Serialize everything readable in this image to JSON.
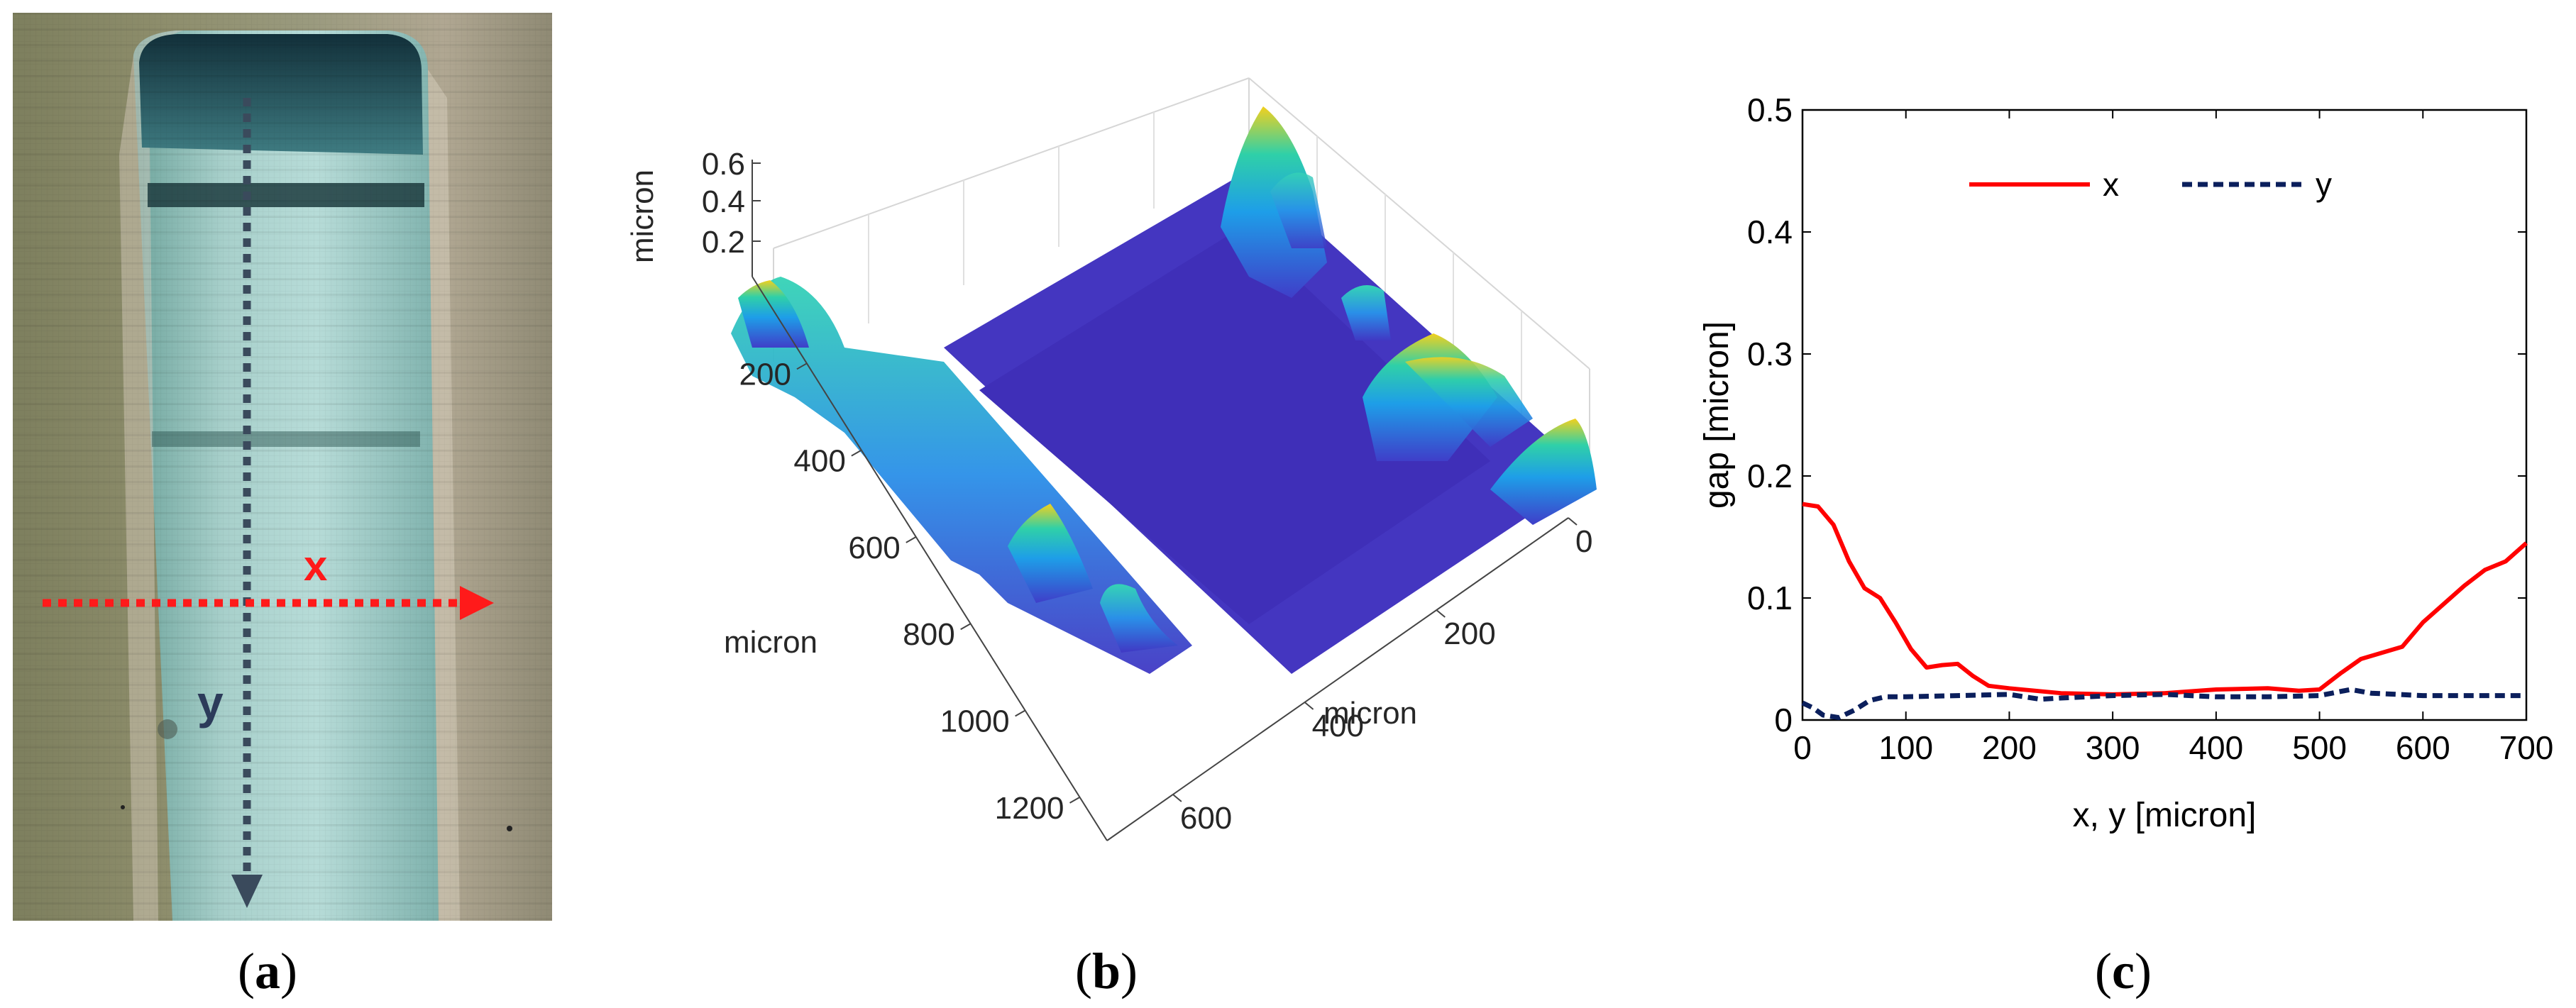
{
  "panels": {
    "a": {
      "caption_open": "(",
      "caption_letter": "a",
      "caption_close": ")",
      "x_label": "x",
      "y_label": "y"
    },
    "b": {
      "caption_open": "(",
      "caption_letter": "b",
      "caption_close": ")"
    },
    "c": {
      "caption_open": "(",
      "caption_letter": "c",
      "caption_close": ")"
    }
  },
  "chart_data": [
    {
      "type": "surface",
      "panel": "b",
      "zlabel": "micron",
      "xlabel": "micron",
      "ylabel": "micron",
      "z_ticks": [
        "0.2",
        "0.4",
        "0.6"
      ],
      "x_ticks": [
        "0",
        "200",
        "400",
        "600"
      ],
      "y_ticks": [
        "200",
        "400",
        "600",
        "800",
        "1000",
        "1200"
      ],
      "x_range": [
        0,
        700
      ],
      "y_range": [
        0,
        1300
      ],
      "z_range": [
        0,
        0.6
      ]
    },
    {
      "type": "line",
      "panel": "c",
      "xlabel": "x, y [micron]",
      "ylabel": "gap [micron]",
      "xlim": [
        0,
        700
      ],
      "ylim": [
        0,
        0.5
      ],
      "x_ticks": [
        "0",
        "100",
        "200",
        "300",
        "400",
        "500",
        "600",
        "700"
      ],
      "y_ticks": [
        "0",
        "0.1",
        "0.2",
        "0.3",
        "0.4",
        "0.5"
      ],
      "series": [
        {
          "name": "x",
          "color": "#ff0000",
          "style": "solid",
          "x": [
            0,
            15,
            30,
            45,
            60,
            75,
            90,
            105,
            120,
            135,
            150,
            165,
            180,
            200,
            250,
            300,
            350,
            400,
            450,
            480,
            500,
            520,
            540,
            560,
            580,
            600,
            620,
            640,
            660,
            680,
            700
          ],
          "y": [
            0.177,
            0.175,
            0.16,
            0.13,
            0.108,
            0.1,
            0.08,
            0.058,
            0.043,
            0.045,
            0.046,
            0.036,
            0.028,
            0.026,
            0.022,
            0.021,
            0.022,
            0.025,
            0.026,
            0.024,
            0.025,
            0.038,
            0.05,
            0.055,
            0.06,
            0.08,
            0.095,
            0.11,
            0.123,
            0.13,
            0.145
          ]
        },
        {
          "name": "y",
          "color": "#0b1f5c",
          "style": "dashed",
          "x": [
            0,
            10,
            20,
            35,
            50,
            65,
            80,
            100,
            150,
            200,
            230,
            250,
            300,
            350,
            400,
            450,
            500,
            530,
            550,
            600,
            650,
            700
          ],
          "y": [
            0.014,
            0.01,
            0.004,
            0.002,
            0.008,
            0.016,
            0.019,
            0.019,
            0.02,
            0.021,
            0.017,
            0.018,
            0.02,
            0.021,
            0.019,
            0.019,
            0.02,
            0.025,
            0.022,
            0.02,
            0.02,
            0.02
          ]
        }
      ]
    }
  ]
}
